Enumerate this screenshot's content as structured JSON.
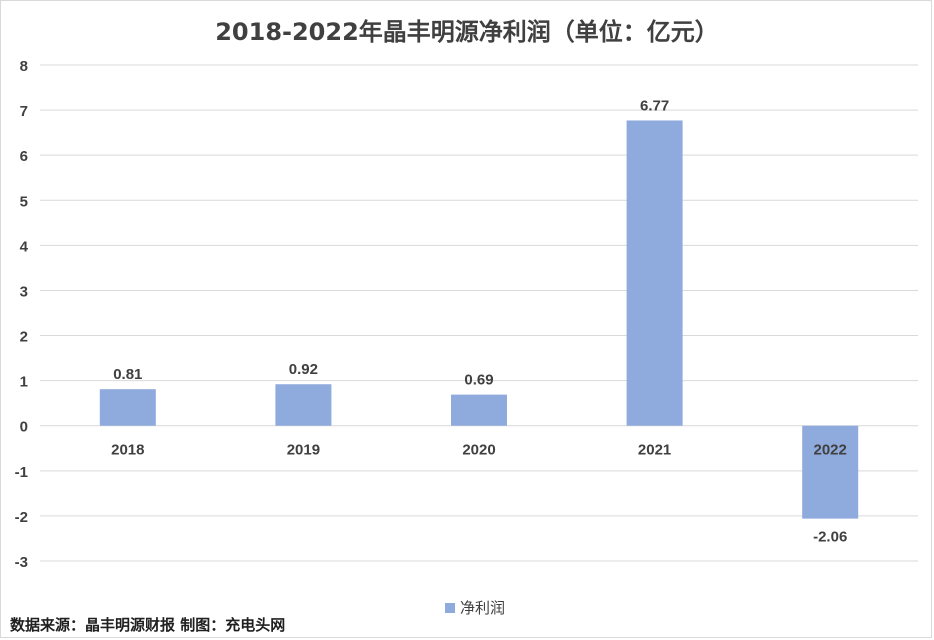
{
  "chart_data": {
    "type": "bar",
    "title": "2018-2022年晶丰明源净利润（单位：亿元）",
    "categories": [
      "2018",
      "2019",
      "2020",
      "2021",
      "2022"
    ],
    "series": [
      {
        "name": "净利润",
        "values": [
          0.81,
          0.92,
          0.69,
          6.77,
          -2.06
        ],
        "color": "#8faadc"
      }
    ],
    "data_labels": [
      "0.81",
      "0.92",
      "0.69",
      "6.77",
      "-2.06"
    ],
    "ylim": [
      -3,
      8
    ],
    "yticks": [
      8,
      7,
      6,
      5,
      4,
      3,
      2,
      1,
      0,
      -1,
      -2,
      -3
    ],
    "xlabel": "",
    "ylabel": "",
    "grid": true,
    "legend_position": "bottom"
  },
  "footer": {
    "source": "数据来源：晶丰明源财报 制图：充电头网"
  },
  "colors": {
    "bar": "#8faadc",
    "grid": "#d9d9d9",
    "text": "#404040"
  }
}
